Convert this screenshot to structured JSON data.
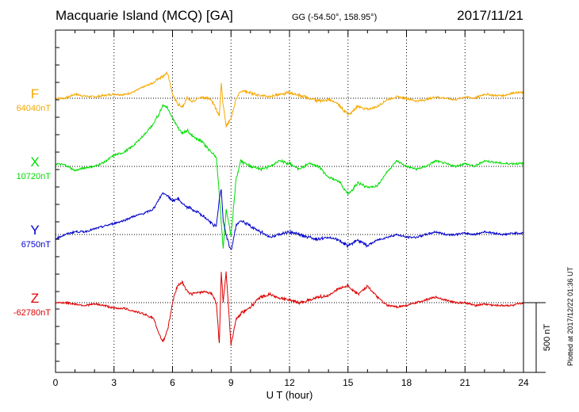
{
  "header": {
    "title": "Macquarie Island (MCQ)  [GA]",
    "coords": "GG (-54.50°, 158.95°)",
    "date": "2017/11/21"
  },
  "footnote": "Plotted at 2017/12/22 01:36 UT",
  "scale_bar_label": "500 nT",
  "colors": {
    "F": "#f5a800",
    "X": "#00dd00",
    "Y": "#0000cc",
    "Z": "#dd0000"
  },
  "chart_data": {
    "type": "line",
    "xlabel": "U T (hour)",
    "xlim": [
      0,
      24
    ],
    "xticks": [
      0,
      3,
      6,
      9,
      12,
      15,
      18,
      21,
      24
    ],
    "x_tick_labels": [
      "0",
      "3",
      "6",
      "9",
      "12",
      "15",
      "18",
      "21",
      "24"
    ],
    "scale_nT": 500,
    "x": [
      0,
      0.5,
      1,
      1.5,
      2,
      2.5,
      3,
      3.5,
      4,
      4.5,
      5,
      5.25,
      5.5,
      5.75,
      6,
      6.25,
      6.5,
      6.75,
      7,
      7.5,
      8,
      8.25,
      8.4,
      8.5,
      8.6,
      8.75,
      9,
      9.25,
      9.5,
      10,
      10.5,
      11,
      11.5,
      12,
      12.5,
      13,
      13.5,
      14,
      14.5,
      15,
      15.5,
      16,
      16.5,
      17,
      17.5,
      18,
      18.5,
      19,
      19.5,
      20,
      20.5,
      21,
      21.5,
      22,
      22.5,
      23,
      23.5,
      24
    ],
    "series": [
      {
        "name": "F",
        "baseline_label": "64040nT",
        "values": [
          0,
          0,
          30,
          15,
          10,
          20,
          30,
          25,
          45,
          80,
          110,
          140,
          160,
          180,
          30,
          -40,
          -60,
          0,
          -20,
          10,
          -10,
          -80,
          -120,
          100,
          -50,
          -200,
          -150,
          0,
          50,
          40,
          20,
          10,
          30,
          40,
          20,
          0,
          -20,
          -10,
          -40,
          -120,
          -60,
          -80,
          -60,
          -10,
          10,
          0,
          -20,
          -10,
          10,
          0,
          -10,
          10,
          0,
          30,
          20,
          20,
          40,
          40
        ]
      },
      {
        "name": "X",
        "baseline_label": "10720nT",
        "values": [
          20,
          10,
          -30,
          -10,
          0,
          30,
          80,
          100,
          150,
          220,
          300,
          360,
          440,
          420,
          350,
          280,
          240,
          260,
          220,
          180,
          100,
          60,
          -200,
          -400,
          -600,
          -300,
          -500,
          -100,
          40,
          0,
          -20,
          0,
          40,
          20,
          -20,
          20,
          0,
          -80,
          -100,
          -200,
          -120,
          -150,
          -140,
          -40,
          40,
          0,
          -20,
          0,
          40,
          20,
          0,
          20,
          0,
          40,
          30,
          20,
          20,
          20
        ]
      },
      {
        "name": "Y",
        "baseline_label": "6750nT",
        "values": [
          -30,
          0,
          20,
          20,
          40,
          60,
          80,
          100,
          130,
          150,
          180,
          240,
          300,
          280,
          240,
          260,
          220,
          200,
          180,
          140,
          80,
          60,
          250,
          330,
          100,
          0,
          -120,
          60,
          100,
          60,
          20,
          -20,
          0,
          20,
          0,
          -20,
          -30,
          -20,
          -40,
          -80,
          -40,
          -80,
          -40,
          -20,
          0,
          -20,
          -20,
          0,
          20,
          0,
          0,
          10,
          0,
          20,
          10,
          0,
          10,
          10
        ]
      },
      {
        "name": "Z",
        "baseline_label": "-62780nT",
        "values": [
          0,
          0,
          -10,
          -20,
          -10,
          -20,
          -40,
          -40,
          -60,
          -80,
          -110,
          -200,
          -280,
          -200,
          0,
          120,
          150,
          80,
          60,
          80,
          70,
          0,
          -300,
          220,
          0,
          220,
          -300,
          -120,
          -80,
          -30,
          40,
          60,
          30,
          20,
          0,
          20,
          40,
          50,
          100,
          120,
          60,
          120,
          40,
          -20,
          -30,
          -20,
          0,
          20,
          40,
          20,
          0,
          0,
          -20,
          -10,
          -20,
          -20,
          -20,
          0
        ]
      }
    ]
  }
}
